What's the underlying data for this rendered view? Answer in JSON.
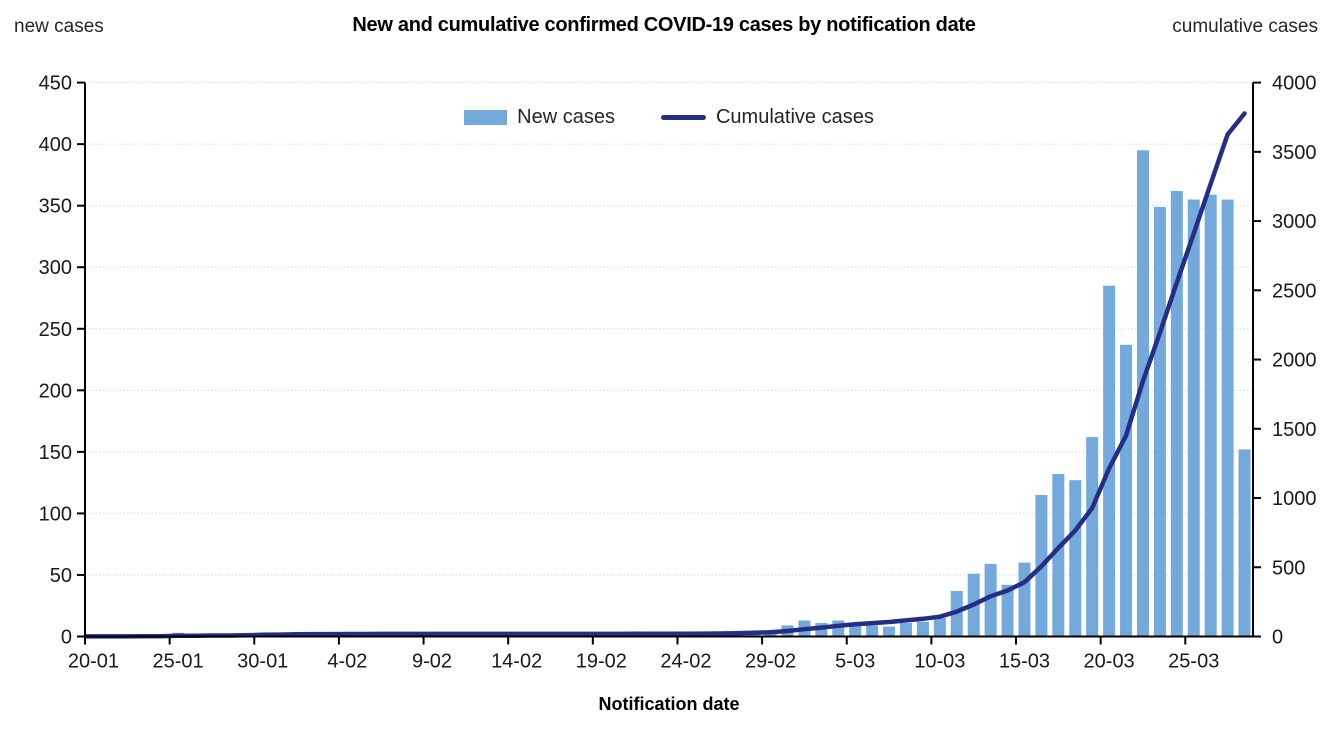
{
  "header": {
    "left_axis_caption": "new cases",
    "title": "New and cumulative confirmed COVID-19 cases by notification date",
    "right_axis_caption": "cumulative cases"
  },
  "legend": {
    "items": [
      {
        "label": "New cases",
        "type": "bar",
        "color": "#74A9DB"
      },
      {
        "label": "Cumulative cases",
        "type": "line",
        "color": "#252E87"
      }
    ]
  },
  "colors": {
    "bar": "#74A9DB",
    "line": "#252E87",
    "grid": "#D9D9D9",
    "axis": "#000000"
  },
  "chart_data": {
    "type": "combo",
    "title": "New and cumulative confirmed COVID-19 cases by notification date",
    "xlabel": "Notification date",
    "grid": "horizontal-dotted",
    "legend_position": "top-center",
    "x": [
      "20-01",
      "21-01",
      "22-01",
      "23-01",
      "24-01",
      "25-01",
      "26-01",
      "27-01",
      "28-01",
      "29-01",
      "30-01",
      "31-01",
      "1-02",
      "2-02",
      "3-02",
      "4-02",
      "5-02",
      "6-02",
      "7-02",
      "8-02",
      "9-02",
      "10-02",
      "11-02",
      "12-02",
      "13-02",
      "14-02",
      "15-02",
      "16-02",
      "17-02",
      "18-02",
      "19-02",
      "20-02",
      "21-02",
      "22-02",
      "23-02",
      "24-02",
      "25-02",
      "26-02",
      "27-02",
      "28-02",
      "29-02",
      "1-03",
      "2-03",
      "3-03",
      "4-03",
      "5-03",
      "6-03",
      "7-03",
      "8-03",
      "9-03",
      "10-03",
      "11-03",
      "12-03",
      "13-03",
      "14-03",
      "15-03",
      "16-03",
      "17-03",
      "18-03",
      "19-03",
      "20-03",
      "21-03",
      "22-03",
      "23-03",
      "24-03",
      "25-03",
      "26-03",
      "27-03",
      "28-03"
    ],
    "x_tick_labels": [
      "20-01",
      "25-01",
      "30-01",
      "4-02",
      "9-02",
      "14-02",
      "19-02",
      "24-02",
      "29-02",
      "5-03",
      "10-03",
      "15-03",
      "20-03",
      "25-03"
    ],
    "x_tick_interval_days": 5,
    "series": [
      {
        "name": "New cases",
        "type": "bar",
        "axis": "left",
        "color": "#74A9DB",
        "values": [
          1,
          0,
          0,
          1,
          0,
          3,
          1,
          1,
          0,
          2,
          3,
          2,
          2,
          1,
          0,
          1,
          0,
          1,
          0,
          0,
          0,
          0,
          0,
          0,
          0,
          0,
          0,
          0,
          0,
          0,
          0,
          0,
          1,
          0,
          0,
          0,
          1,
          1,
          2,
          3,
          4,
          9,
          13,
          11,
          13,
          11,
          9,
          8,
          11,
          12,
          15,
          37,
          51,
          59,
          42,
          60,
          115,
          132,
          127,
          162,
          285,
          237,
          395,
          349,
          362,
          355,
          359,
          355,
          152
        ]
      },
      {
        "name": "Cumulative cases",
        "type": "line",
        "axis": "right",
        "color": "#252E87",
        "values": [
          1,
          1,
          1,
          2,
          2,
          5,
          6,
          7,
          7,
          9,
          12,
          14,
          16,
          17,
          17,
          18,
          18,
          19,
          19,
          19,
          19,
          19,
          19,
          19,
          19,
          19,
          19,
          19,
          19,
          19,
          19,
          19,
          20,
          20,
          20,
          20,
          21,
          22,
          24,
          27,
          31,
          40,
          53,
          64,
          77,
          88,
          97,
          105,
          116,
          128,
          143,
          180,
          231,
          290,
          332,
          392,
          507,
          639,
          766,
          928,
          1213,
          1450,
          1845,
          2194,
          2556,
          2911,
          3270,
          3625,
          3777
        ]
      }
    ],
    "left_axis": {
      "caption": "new cases",
      "min": 0,
      "max": 450,
      "step": 50,
      "ticks": [
        "0",
        "50",
        "100",
        "150",
        "200",
        "250",
        "300",
        "350",
        "400",
        "450"
      ]
    },
    "right_axis": {
      "caption": "cumulative cases",
      "min": 0,
      "max": 4000,
      "step": 500,
      "ticks": [
        "0",
        "500",
        "1000",
        "1500",
        "2000",
        "2500",
        "3000",
        "3500",
        "4000"
      ]
    }
  }
}
